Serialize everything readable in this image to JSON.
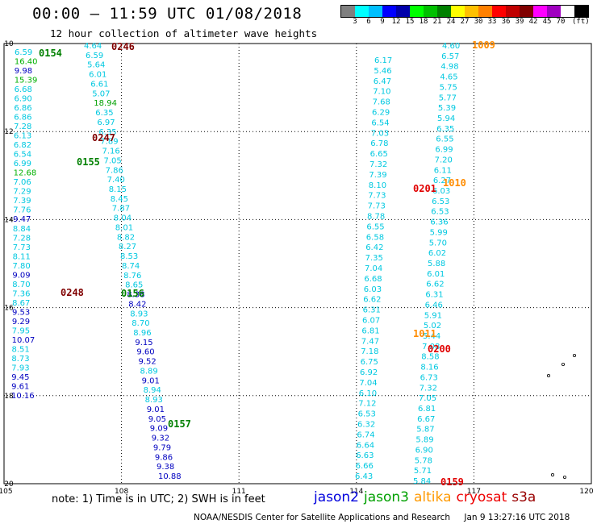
{
  "header": {
    "title": "00:00 – 11:59 UTC 01/08/2018",
    "subtitle": "12 hour collection of altimeter wave heights"
  },
  "colorbar": {
    "colors": [
      "#808080",
      "#00ffff",
      "#00c0ff",
      "#0000ff",
      "#0000aa",
      "#00ff00",
      "#00c000",
      "#008000",
      "#ffff00",
      "#ffc000",
      "#ff8000",
      "#ff0000",
      "#c00000",
      "#800000",
      "#ff00ff",
      "#a000c0",
      "#ffffff",
      "#000000"
    ],
    "labels": [
      "3",
      "6",
      "9",
      "12",
      "15",
      "18",
      "21",
      "24",
      "27",
      "30",
      "33",
      "36",
      "39",
      "42",
      "45",
      "70"
    ],
    "unit": "(ft)"
  },
  "axes": {
    "lon_labels": [
      "105",
      "108",
      "111",
      "114",
      "117",
      "120"
    ],
    "lat_labels": [
      "10",
      "12",
      "14",
      "16",
      "18",
      "20"
    ]
  },
  "tracks": {
    "left": [
      {
        "t": "6.59",
        "c": "#00c8e0"
      },
      {
        "t": "16.40",
        "c": "#00b000"
      },
      {
        "t": "9.98",
        "c": "#0000c0"
      },
      {
        "t": "15.39",
        "c": "#00b000"
      },
      {
        "t": "6.68",
        "c": "#00c8e0"
      },
      {
        "t": "6.90",
        "c": "#00c8e0"
      },
      {
        "t": "6.86",
        "c": "#00c8e0"
      },
      {
        "t": "6.86",
        "c": "#00c8e0"
      },
      {
        "t": "7.28",
        "c": "#00c8e0"
      },
      {
        "t": "6.13",
        "c": "#00c8e0"
      },
      {
        "t": "6.82",
        "c": "#00c8e0"
      },
      {
        "t": "6.54",
        "c": "#00c8e0"
      },
      {
        "t": "6.99",
        "c": "#00c8e0"
      },
      {
        "t": "12.68",
        "c": "#00b000"
      },
      {
        "t": "7.06",
        "c": "#00c8e0"
      },
      {
        "t": "7.29",
        "c": "#00c8e0"
      },
      {
        "t": "7.39",
        "c": "#00c8e0"
      },
      {
        "t": "7.76",
        "c": "#00c8e0"
      },
      {
        "t": "9.47",
        "c": "#0000c0"
      },
      {
        "t": "8.84",
        "c": "#00c8e0"
      },
      {
        "t": "7.28",
        "c": "#00c8e0"
      },
      {
        "t": "7.73",
        "c": "#00c8e0"
      },
      {
        "t": "8.11",
        "c": "#00c8e0"
      },
      {
        "t": "7.80",
        "c": "#00c8e0"
      },
      {
        "t": "9.09",
        "c": "#0000c0"
      },
      {
        "t": "8.70",
        "c": "#00c8e0"
      },
      {
        "t": "7.36",
        "c": "#00c8e0"
      },
      {
        "t": "8.67",
        "c": "#00c8e0"
      },
      {
        "t": "9.53",
        "c": "#0000c0"
      },
      {
        "t": "9.29",
        "c": "#0000c0"
      },
      {
        "t": "7.95",
        "c": "#00c8e0"
      },
      {
        "t": "10.07",
        "c": "#0000c0"
      },
      {
        "t": "8.51",
        "c": "#00c8e0"
      },
      {
        "t": "8.73",
        "c": "#00c8e0"
      },
      {
        "t": "7.93",
        "c": "#00c8e0"
      },
      {
        "t": "9.45",
        "c": "#0000c0"
      },
      {
        "t": "9.61",
        "c": "#0000c0"
      },
      {
        "t": "10.16",
        "c": "#0000c0"
      }
    ],
    "mid": [
      {
        "t": "4.64",
        "c": "#00c8e0"
      },
      {
        "t": "6.59",
        "c": "#00c8e0"
      },
      {
        "t": "5.64",
        "c": "#00c8e0"
      },
      {
        "t": "6.01",
        "c": "#00c8e0"
      },
      {
        "t": "6.61",
        "c": "#00c8e0"
      },
      {
        "t": "5.07",
        "c": "#00c8e0"
      },
      {
        "t": "18.94",
        "c": "#00a000"
      },
      {
        "t": "6.35",
        "c": "#00c8e0"
      },
      {
        "t": "6.97",
        "c": "#00c8e0"
      },
      {
        "t": "6.35",
        "c": "#00c8e0"
      },
      {
        "t": "7.89",
        "c": "#00c8e0"
      },
      {
        "t": "7.16",
        "c": "#00c8e0"
      },
      {
        "t": "7.05",
        "c": "#00c8e0"
      },
      {
        "t": "7.86",
        "c": "#00c8e0"
      },
      {
        "t": "7.40",
        "c": "#00c8e0"
      },
      {
        "t": "8.15",
        "c": "#00c8e0"
      },
      {
        "t": "8.45",
        "c": "#00c8e0"
      },
      {
        "t": "7.87",
        "c": "#00c8e0"
      },
      {
        "t": "8.04",
        "c": "#00c8e0"
      },
      {
        "t": "8.01",
        "c": "#00c8e0"
      },
      {
        "t": "8.82",
        "c": "#00c8e0"
      },
      {
        "t": "8.27",
        "c": "#00c8e0"
      },
      {
        "t": "8.53",
        "c": "#00c8e0"
      },
      {
        "t": "8.74",
        "c": "#00c8e0"
      },
      {
        "t": "8.76",
        "c": "#00c8e0"
      },
      {
        "t": "8.65",
        "c": "#00c8e0"
      },
      {
        "t": "8.38",
        "c": "#0000c0"
      },
      {
        "t": "8.42",
        "c": "#0000c0"
      },
      {
        "t": "8.93",
        "c": "#00c8e0"
      },
      {
        "t": "8.70",
        "c": "#00c8e0"
      },
      {
        "t": "8.96",
        "c": "#00c8e0"
      },
      {
        "t": "9.15",
        "c": "#0000c0"
      },
      {
        "t": "9.60",
        "c": "#0000c0"
      },
      {
        "t": "9.52",
        "c": "#0000c0"
      },
      {
        "t": "8.89",
        "c": "#00c8e0"
      },
      {
        "t": "9.01",
        "c": "#0000c0"
      },
      {
        "t": "8.94",
        "c": "#00c8e0"
      },
      {
        "t": "8.93",
        "c": "#00c8e0"
      },
      {
        "t": "9.01",
        "c": "#0000c0"
      },
      {
        "t": "9.05",
        "c": "#0000c0"
      },
      {
        "t": "9.09",
        "c": "#0000c0"
      },
      {
        "t": "9.32",
        "c": "#0000c0"
      },
      {
        "t": "9.79",
        "c": "#0000c0"
      },
      {
        "t": "9.86",
        "c": "#0000c0"
      },
      {
        "t": "9.38",
        "c": "#0000c0"
      },
      {
        "t": "10.88",
        "c": "#0000c0"
      }
    ],
    "right_a": [
      {
        "t": "6.17",
        "c": "#00c8e0"
      },
      {
        "t": "5.46",
        "c": "#00c8e0"
      },
      {
        "t": "6.47",
        "c": "#00c8e0"
      },
      {
        "t": "7.10",
        "c": "#00c8e0"
      },
      {
        "t": "7.68",
        "c": "#00c8e0"
      },
      {
        "t": "6.29",
        "c": "#00c8e0"
      },
      {
        "t": "6.54",
        "c": "#00c8e0"
      },
      {
        "t": "7.03",
        "c": "#00c8e0"
      },
      {
        "t": "6.78",
        "c": "#00c8e0"
      },
      {
        "t": "6.65",
        "c": "#00c8e0"
      },
      {
        "t": "7.32",
        "c": "#00c8e0"
      },
      {
        "t": "7.39",
        "c": "#00c8e0"
      },
      {
        "t": "8.10",
        "c": "#00c8e0"
      },
      {
        "t": "7.73",
        "c": "#00c8e0"
      },
      {
        "t": "7.73",
        "c": "#00c8e0"
      },
      {
        "t": "8.78",
        "c": "#00c8e0"
      },
      {
        "t": "6.55",
        "c": "#00c8e0"
      },
      {
        "t": "6.58",
        "c": "#00c8e0"
      },
      {
        "t": "6.42",
        "c": "#00c8e0"
      },
      {
        "t": "7.35",
        "c": "#00c8e0"
      },
      {
        "t": "7.04",
        "c": "#00c8e0"
      },
      {
        "t": "6.68",
        "c": "#00c8e0"
      },
      {
        "t": "6.03",
        "c": "#00c8e0"
      },
      {
        "t": "6.62",
        "c": "#00c8e0"
      },
      {
        "t": "6.31",
        "c": "#00c8e0"
      },
      {
        "t": "6.07",
        "c": "#00c8e0"
      },
      {
        "t": "6.81",
        "c": "#00c8e0"
      },
      {
        "t": "7.47",
        "c": "#00c8e0"
      },
      {
        "t": "7.18",
        "c": "#00c8e0"
      },
      {
        "t": "6.75",
        "c": "#00c8e0"
      },
      {
        "t": "6.92",
        "c": "#00c8e0"
      },
      {
        "t": "7.04",
        "c": "#00c8e0"
      },
      {
        "t": "6.10",
        "c": "#00c8e0"
      },
      {
        "t": "7.12",
        "c": "#00c8e0"
      },
      {
        "t": "6.53",
        "c": "#00c8e0"
      },
      {
        "t": "6.32",
        "c": "#00c8e0"
      },
      {
        "t": "6.74",
        "c": "#00c8e0"
      },
      {
        "t": "6.64",
        "c": "#00c8e0"
      },
      {
        "t": "6.63",
        "c": "#00c8e0"
      },
      {
        "t": "6.66",
        "c": "#00c8e0"
      },
      {
        "t": "6.43",
        "c": "#00c8e0"
      }
    ],
    "right_b": [
      {
        "t": "4.60",
        "c": "#00c8e0"
      },
      {
        "t": "6.57",
        "c": "#00c8e0"
      },
      {
        "t": "4.98",
        "c": "#00c8e0"
      },
      {
        "t": "4.65",
        "c": "#00c8e0"
      },
      {
        "t": "5.75",
        "c": "#00c8e0"
      },
      {
        "t": "5.77",
        "c": "#00c8e0"
      },
      {
        "t": "5.39",
        "c": "#00c8e0"
      },
      {
        "t": "5.94",
        "c": "#00c8e0"
      },
      {
        "t": "6.35",
        "c": "#00c8e0"
      },
      {
        "t": "6.55",
        "c": "#00c8e0"
      },
      {
        "t": "6.99",
        "c": "#00c8e0"
      },
      {
        "t": "7.20",
        "c": "#00c8e0"
      },
      {
        "t": "6.11",
        "c": "#00c8e0"
      },
      {
        "t": "6.27",
        "c": "#00c8e0"
      },
      {
        "t": "6.03",
        "c": "#00c8e0"
      },
      {
        "t": "6.53",
        "c": "#00c8e0"
      },
      {
        "t": "6.53",
        "c": "#00c8e0"
      },
      {
        "t": "6.36",
        "c": "#00c8e0"
      },
      {
        "t": "5.99",
        "c": "#00c8e0"
      },
      {
        "t": "5.70",
        "c": "#00c8e0"
      },
      {
        "t": "6.02",
        "c": "#00c8e0"
      },
      {
        "t": "5.88",
        "c": "#00c8e0"
      },
      {
        "t": "6.01",
        "c": "#00c8e0"
      },
      {
        "t": "6.62",
        "c": "#00c8e0"
      },
      {
        "t": "6.31",
        "c": "#00c8e0"
      },
      {
        "t": "6.46",
        "c": "#00c8e0"
      },
      {
        "t": "5.91",
        "c": "#00c8e0"
      },
      {
        "t": "5.02",
        "c": "#00c8e0"
      },
      {
        "t": "5.44",
        "c": "#00c8e0"
      },
      {
        "t": "7.08",
        "c": "#00c8e0"
      },
      {
        "t": "8.58",
        "c": "#00c8e0"
      },
      {
        "t": "8.16",
        "c": "#00c8e0"
      },
      {
        "t": "6.73",
        "c": "#00c8e0"
      },
      {
        "t": "7.32",
        "c": "#00c8e0"
      },
      {
        "t": "7.05",
        "c": "#00c8e0"
      },
      {
        "t": "6.81",
        "c": "#00c8e0"
      },
      {
        "t": "6.67",
        "c": "#00c8e0"
      },
      {
        "t": "5.87",
        "c": "#00c8e0"
      },
      {
        "t": "5.89",
        "c": "#00c8e0"
      },
      {
        "t": "6.90",
        "c": "#00c8e0"
      },
      {
        "t": "5.78",
        "c": "#00c8e0"
      },
      {
        "t": "5.71",
        "c": "#00c8e0"
      },
      {
        "t": "5.84",
        "c": "#00c8e0"
      }
    ]
  },
  "time_labels": [
    {
      "t": "0154",
      "c": "#008000"
    },
    {
      "t": "0246",
      "c": "#800000"
    },
    {
      "t": "1009",
      "c": "#ff8c00"
    },
    {
      "t": "0247",
      "c": "#800000"
    },
    {
      "t": "0155",
      "c": "#008000"
    },
    {
      "t": "0201",
      "c": "#e00000"
    },
    {
      "t": "1010",
      "c": "#ff8c00"
    },
    {
      "t": "0248",
      "c": "#800000"
    },
    {
      "t": "0156",
      "c": "#008000"
    },
    {
      "t": "1011",
      "c": "#ff8c00"
    },
    {
      "t": "0200",
      "c": "#e00000"
    },
    {
      "t": "0157",
      "c": "#008000"
    },
    {
      "t": "0159",
      "c": "#e00000"
    }
  ],
  "footer": {
    "note": "note: 1) Time is in UTC; 2) SWH is in feet",
    "satellites": [
      {
        "name": "jason2",
        "color": "#0000dd"
      },
      {
        "name": "jason3",
        "color": "#00a000"
      },
      {
        "name": "altika",
        "color": "#ff9900"
      },
      {
        "name": "cryosat",
        "color": "#ee0000"
      },
      {
        "name": "s3a",
        "color": "#990000"
      }
    ],
    "credit_org": "NOAA/NESDIS Center for Satellite Applications and Research",
    "credit_time": "Jan  9 13:27:16 UTC 2018"
  }
}
